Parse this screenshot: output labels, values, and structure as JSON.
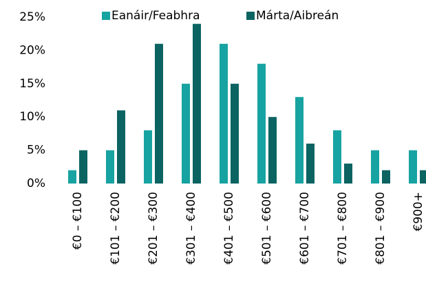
{
  "chart_data": {
    "type": "bar",
    "categories": [
      "€0 – €100",
      "€101 – €200",
      "€201 – €300",
      "€301 – €400",
      "€401 – €500",
      "€501 – €600",
      "€601 – €700",
      "€701 – €800",
      "€801 – €900",
      "€900+"
    ],
    "series": [
      {
        "name": "Eanáir/Feabhra",
        "color": "#17a3a1",
        "values": [
          2,
          5,
          8,
          15,
          21,
          18,
          13,
          8,
          5,
          5
        ]
      },
      {
        "name": "Márta/Aibreán",
        "color": "#0b6462",
        "values": [
          5,
          11,
          21,
          24,
          15,
          10,
          6,
          3,
          2,
          2
        ]
      }
    ],
    "ylim": [
      0,
      25
    ],
    "yticks": [
      {
        "value": 0,
        "label": "0%"
      },
      {
        "value": 5,
        "label": "5%"
      },
      {
        "value": 10,
        "label": "10%"
      },
      {
        "value": 15,
        "label": "15%"
      },
      {
        "value": 20,
        "label": "20%"
      },
      {
        "value": 25,
        "label": "25%"
      }
    ],
    "legend": "top",
    "grid": false
  }
}
